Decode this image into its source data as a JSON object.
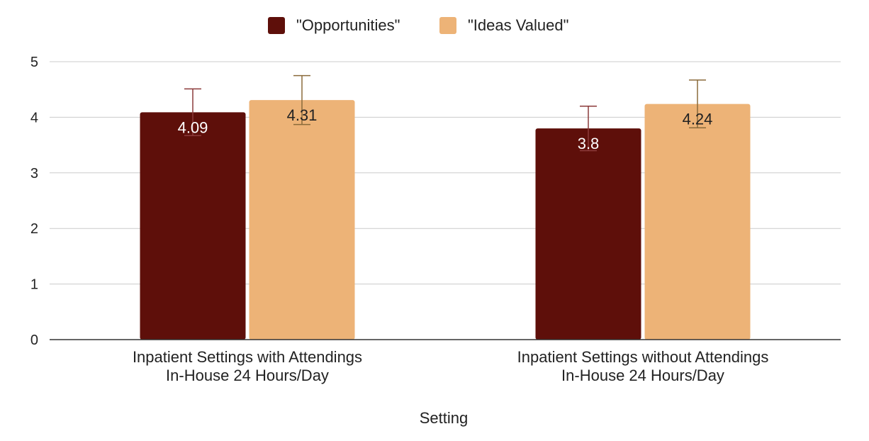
{
  "chart_data": {
    "type": "bar",
    "title": "",
    "xlabel": "Setting",
    "ylabel": "",
    "ylim": [
      0,
      5
    ],
    "yticks": [
      0,
      1,
      2,
      3,
      4,
      5
    ],
    "grid": true,
    "legend_position": "top-center",
    "categories": [
      [
        "Inpatient Settings with Attendings",
        "In-House 24 Hours/Day"
      ],
      [
        "Inpatient Settings without Attendings",
        "In-House 24 Hours/Day"
      ]
    ],
    "series": [
      {
        "name": "\"Opportunities\"",
        "color": "#5e0f0a",
        "label_color": "#ffffff",
        "error_color": "#8b3a3a",
        "values": [
          4.09,
          3.8
        ],
        "value_labels": [
          "4.09",
          "3.8"
        ],
        "error": [
          0.42,
          0.4
        ]
      },
      {
        "name": "\"Ideas Valued\"",
        "color": "#edb377",
        "label_color": "#222222",
        "error_color": "#8a6a3a",
        "values": [
          4.31,
          4.24
        ],
        "value_labels": [
          "4.31",
          "4.24"
        ],
        "error": [
          0.44,
          0.43
        ]
      }
    ]
  }
}
